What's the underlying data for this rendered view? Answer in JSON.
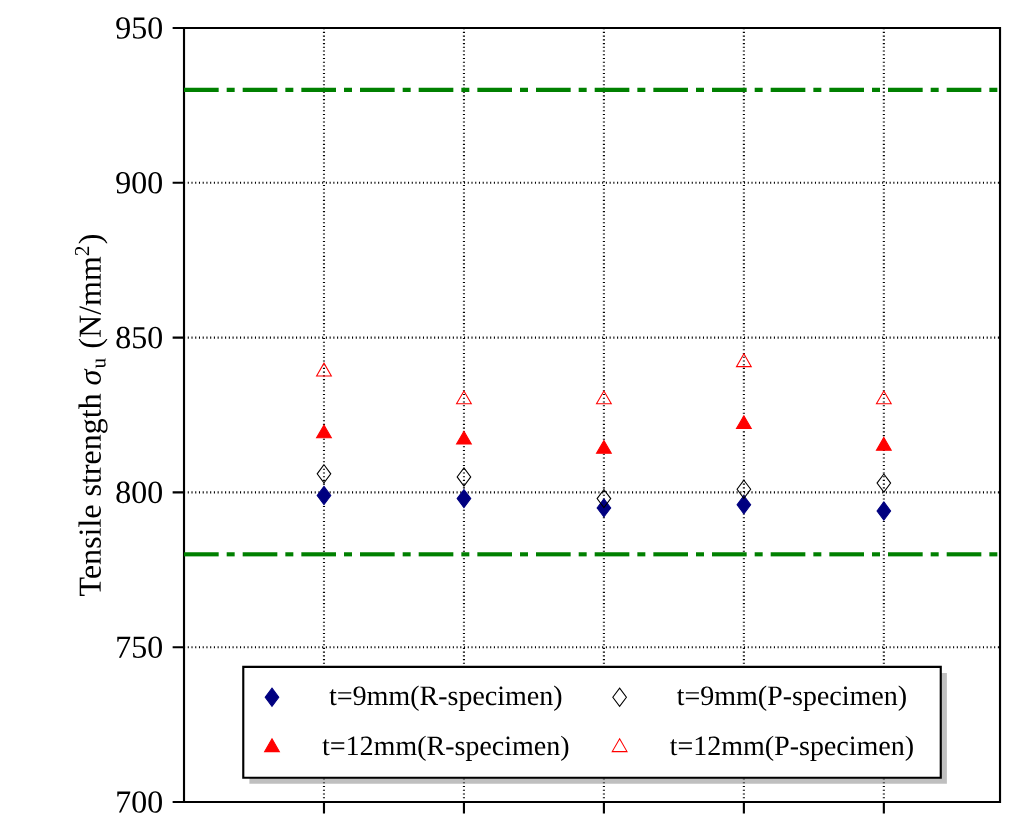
{
  "chart_data": {
    "type": "scatter",
    "ylabel": "Tensile strength *σ*$_{u}$  (N/mm$^{2}$)",
    "categories": [
      null,
      null,
      null,
      null,
      null
    ],
    "series": [
      {
        "name": "t=9mm(R-specimen)",
        "color": "#000080",
        "marker": "diamond",
        "values": [
          799,
          798,
          795,
          796,
          794
        ]
      },
      {
        "name": "t=9mm(P-specimen)",
        "color": "#000000",
        "marker": "diamond-open",
        "values": [
          806,
          805,
          798,
          801,
          803
        ]
      },
      {
        "name": "t=12mm(R-specimen)",
        "color": "#ff0000",
        "marker": "triangle",
        "values": [
          819,
          817,
          814,
          822,
          815
        ]
      },
      {
        "name": "t=12mm(P-specimen)",
        "color": "#ff0000",
        "marker": "triangle-open",
        "values": [
          839,
          830,
          830,
          842,
          830
        ]
      }
    ],
    "ylim": [
      700,
      950
    ],
    "yticks": [
      700,
      750,
      800,
      850,
      900,
      950
    ],
    "ref_lines": [
      {
        "axis": "y",
        "value": 930,
        "color": "#008000",
        "line_style": "dashdot"
      },
      {
        "axis": "y",
        "value": 780,
        "color": "#008000",
        "line_style": "dashdot"
      }
    ],
    "grid": true,
    "legend": "bottom"
  }
}
